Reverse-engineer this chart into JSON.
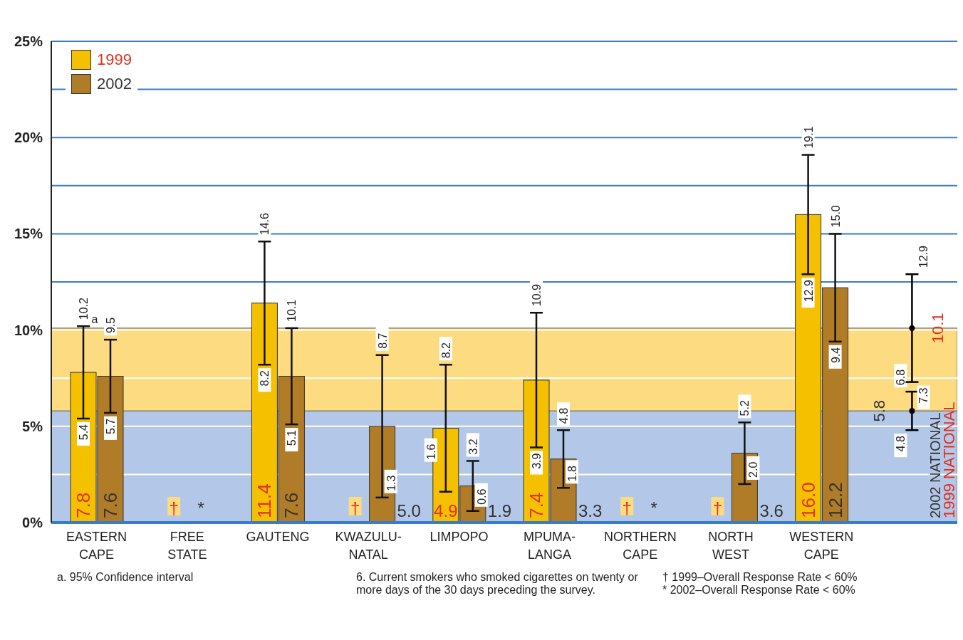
{
  "chart_data": {
    "type": "bar",
    "categories": [
      "EASTERN CAPE",
      "FREE STATE",
      "GAUTENG",
      "KWAZULU-NATAL",
      "LIMPOPO",
      "MPUMA-LANGA",
      "NORTHERN CAPE",
      "NORTH WEST",
      "WESTERN CAPE",
      null
    ],
    "series": [
      {
        "name": "1999",
        "color": "#f4c000",
        "values": [
          7.8,
          null,
          11.4,
          null,
          4.9,
          7.4,
          null,
          null,
          16.0,
          null
        ],
        "errors": [
          [
            5.4,
            10.2
          ],
          null,
          [
            8.2,
            14.6
          ],
          null,
          [
            1.6,
            8.2
          ],
          [
            3.9,
            10.9
          ],
          null,
          null,
          [
            12.9,
            19.1
          ],
          null
        ],
        "value_labels": [
          "7.8",
          "†",
          "11.4",
          "†",
          "4.9",
          "7.4",
          "†",
          "†",
          "16.0",
          null
        ]
      },
      {
        "name": "2002",
        "color": "#b07c28",
        "values": [
          7.6,
          null,
          7.6,
          5.0,
          1.9,
          3.3,
          null,
          3.6,
          12.2,
          null
        ],
        "errors": [
          [
            5.7,
            9.5
          ],
          null,
          [
            5.1,
            10.1
          ],
          [
            1.3,
            8.7
          ],
          [
            0.6,
            3.2
          ],
          [
            1.8,
            4.8
          ],
          null,
          [
            2.0,
            5.2
          ],
          [
            9.4,
            15.0
          ],
          null
        ],
        "value_labels": [
          "7.6",
          "*",
          "7.6",
          "5.0",
          "1.9",
          "3.3",
          "*",
          "3.6",
          "12.2",
          null
        ]
      },
      {
        "type": "scatter",
        "color": "#000000",
        "marker": "circle",
        "values": [
          null,
          null,
          null,
          null,
          null,
          null,
          null,
          null,
          null,
          5.8
        ],
        "errors": [
          null,
          null,
          null,
          null,
          null,
          null,
          null,
          null,
          null,
          [
            4.8,
            6.8
          ]
        ],
        "value_labels": [
          null,
          null,
          null,
          null,
          null,
          null,
          null,
          null,
          null,
          "5.8"
        ]
      },
      {
        "type": "scatter",
        "color": "#000000",
        "marker": "circle",
        "values": [
          null,
          null,
          null,
          null,
          null,
          null,
          null,
          null,
          null,
          10.1
        ],
        "errors": [
          null,
          null,
          null,
          null,
          null,
          null,
          null,
          null,
          null,
          [
            7.3,
            12.9
          ]
        ],
        "value_labels": [
          null,
          null,
          null,
          null,
          null,
          null,
          null,
          null,
          null,
          "10.1"
        ]
      }
    ],
    "bands": [
      {
        "axis": "y",
        "from": 0,
        "to": 10.1,
        "label": "1999 NATIONAL",
        "color": "#fddb80"
      },
      {
        "axis": "y",
        "from": 0,
        "to": 5.8,
        "label": "2002 NATIONAL",
        "color": "#b3c8e8"
      }
    ],
    "ylim": [
      0,
      25
    ],
    "yticks": [
      {
        "value": 0,
        "label": "0%"
      },
      {
        "value": 2.5,
        "label": null
      },
      {
        "value": 5,
        "label": "5%"
      },
      {
        "value": 7.5,
        "label": null
      },
      {
        "value": 10,
        "label": "10%"
      },
      {
        "value": 12.5,
        "label": null
      },
      {
        "value": 15,
        "label": "15%"
      },
      {
        "value": 17.5,
        "label": null
      },
      {
        "value": 20,
        "label": "20%"
      },
      {
        "value": 22.5,
        "label": null
      },
      {
        "value": 25,
        "label": "25%"
      }
    ],
    "grid": "y",
    "legend": "top left",
    "annotations": [
      {
        "text": "a",
        "x": "EASTERN CAPE",
        "y": 10.2
      },
      "10.2",
      "5.4",
      "14.6",
      "8.2",
      "8.2",
      "1.6",
      "10.9",
      "3.9",
      "19.1",
      "12.9",
      "9.5",
      "5.7",
      "10.1",
      "5.1",
      "8.7",
      "1.3",
      "3.2",
      "0.6",
      "4.8",
      "1.8",
      "5.2",
      "2.0",
      "15.0",
      "9.4",
      "6.8",
      "4.8",
      "12.9",
      "7.3",
      "a. 95% Confidence interval",
      "6.  Current smokers who smoked cigarettes on twenty or more days of the 30 days preceding the survey.",
      "† 1999–Overall Response Rate < 60%",
      "* 2002–Overall Response Rate < 60%"
    ]
  }
}
